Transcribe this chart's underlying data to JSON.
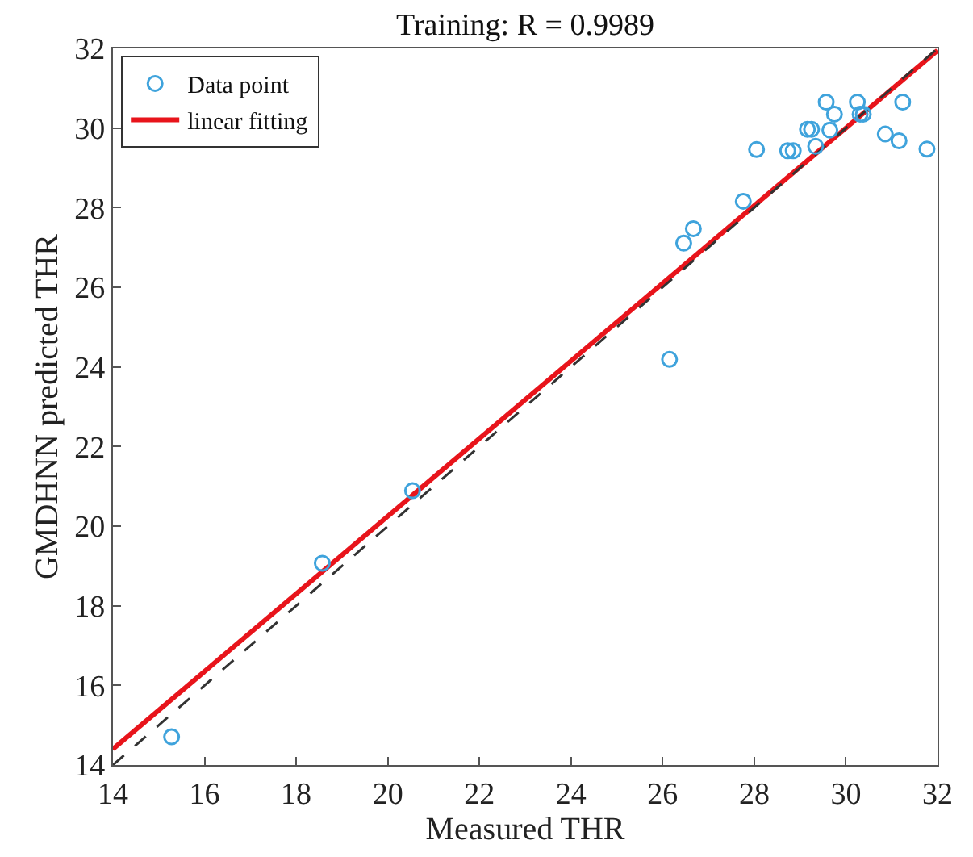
{
  "chart_data": {
    "type": "scatter",
    "title": "Training: R = 0.9989",
    "xlabel": "Measured THR",
    "ylabel": "GMDHNN predicted THR",
    "xlim": [
      14,
      32
    ],
    "ylim": [
      14,
      32
    ],
    "xticks": [
      14,
      16,
      18,
      20,
      22,
      24,
      26,
      28,
      30,
      32
    ],
    "yticks": [
      14,
      16,
      18,
      20,
      22,
      24,
      26,
      28,
      30,
      32
    ],
    "legend": "top left",
    "series": [
      {
        "name": "Data point",
        "marker": "circle",
        "color": "#3fa3dc",
        "x": [
          15.28,
          18.57,
          20.54,
          26.15,
          26.46,
          26.67,
          27.76,
          28.05,
          28.73,
          28.85,
          29.16,
          29.25,
          29.34,
          29.57,
          29.65,
          29.75,
          30.25,
          30.31,
          30.38,
          30.86,
          31.16,
          31.24,
          31.77
        ],
        "values": [
          14.71,
          19.07,
          20.89,
          24.19,
          27.11,
          27.47,
          28.16,
          29.46,
          29.43,
          29.43,
          29.97,
          29.97,
          29.54,
          30.65,
          29.95,
          30.35,
          30.65,
          30.35,
          30.35,
          29.85,
          29.68,
          30.65,
          29.47
        ]
      },
      {
        "name": "linear fitting",
        "type": "line",
        "marker": "none",
        "line_style": "solid",
        "color": "#e8141b",
        "x": [
          14,
          32
        ],
        "values": [
          14.4,
          31.95
        ]
      },
      {
        "type": "line",
        "marker": "none",
        "line_style": "dashed",
        "color": "#333333",
        "x": [
          14,
          32
        ],
        "values": [
          14,
          32
        ]
      }
    ]
  }
}
